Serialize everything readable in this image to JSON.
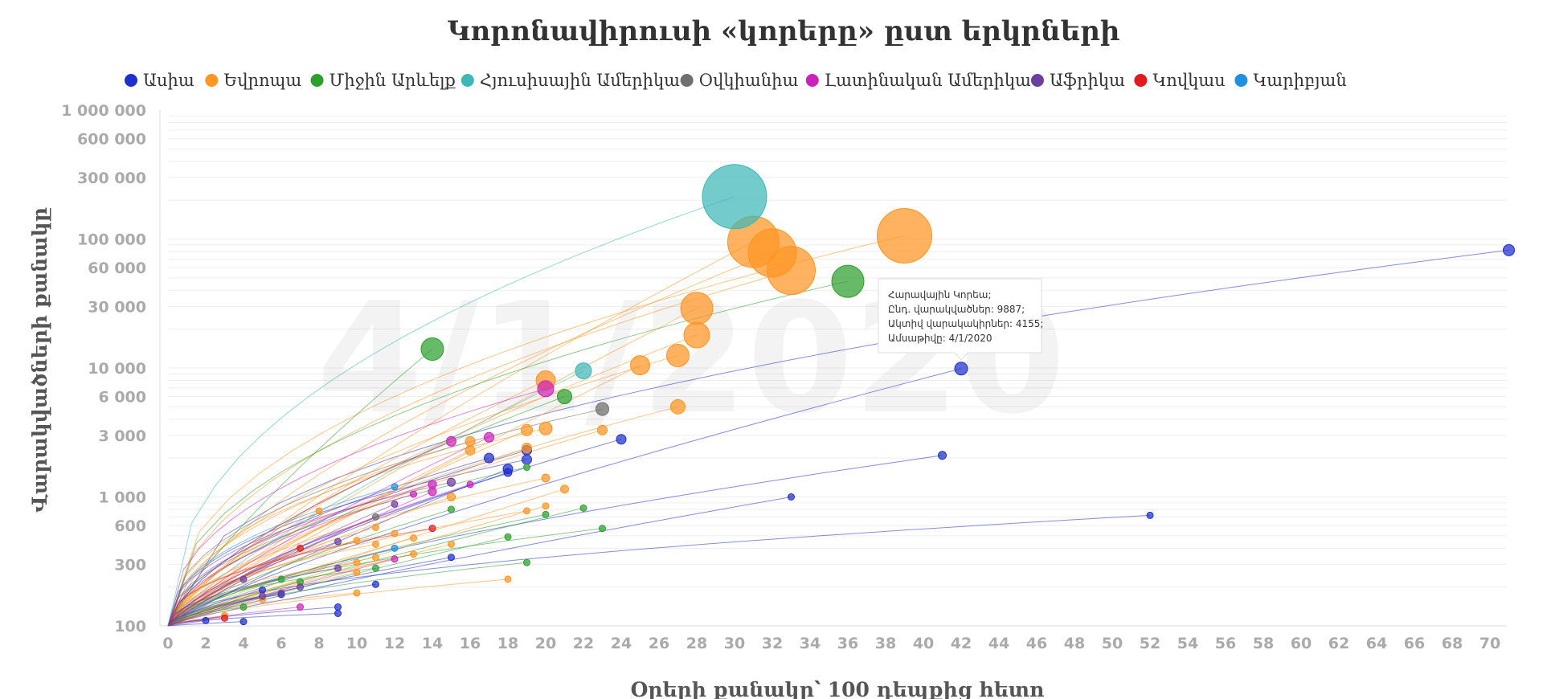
{
  "chart_data": {
    "type": "scatter",
    "title": "Կորոնավիրուսի «կորերը» ըստ երկրների",
    "xlabel": "Օրերի քանակը՝ 100 դեպքից հետո",
    "ylabel": "Վարակվածների քանակը",
    "watermark": "4/1/2020",
    "xlim": [
      0,
      71
    ],
    "ylim": [
      100,
      1000000
    ],
    "yscale": "log",
    "grid": true,
    "legend_position": "top",
    "x_ticks": [
      "0",
      "2",
      "4",
      "6",
      "8",
      "10",
      "12",
      "14",
      "16",
      "18",
      "20",
      "22",
      "24",
      "26",
      "28",
      "30",
      "32",
      "34",
      "36",
      "38",
      "40",
      "42",
      "44",
      "46",
      "48",
      "50",
      "52",
      "54",
      "56",
      "58",
      "60",
      "62",
      "64",
      "66",
      "68",
      "70"
    ],
    "y_ticks": [
      {
        "value": 100,
        "label": "100"
      },
      {
        "value": 300,
        "label": "300"
      },
      {
        "value": 600,
        "label": "600"
      },
      {
        "value": 1000,
        "label": "1 000"
      },
      {
        "value": 3000,
        "label": "3 000"
      },
      {
        "value": 6000,
        "label": "6 000"
      },
      {
        "value": 10000,
        "label": "10 000"
      },
      {
        "value": 30000,
        "label": "30 000"
      },
      {
        "value": 60000,
        "label": "60 000"
      },
      {
        "value": 100000,
        "label": "100 000"
      },
      {
        "value": 300000,
        "label": "300 000"
      },
      {
        "value": 600000,
        "label": "600 000"
      },
      {
        "value": 1000000,
        "label": "1 000 000"
      }
    ],
    "series": [
      {
        "name": "Ասիա",
        "color": "#1f2fcc",
        "points": [
          [
            71,
            82000,
            7
          ],
          [
            42,
            9887,
            8
          ],
          [
            41,
            2100,
            5
          ],
          [
            52,
            720,
            4
          ],
          [
            33,
            1000,
            4
          ],
          [
            24,
            2800,
            6
          ],
          [
            17,
            2000,
            6
          ],
          [
            18,
            1650,
            6
          ],
          [
            18,
            1550,
            5
          ],
          [
            19,
            2300,
            6
          ],
          [
            19,
            1950,
            6
          ],
          [
            11,
            210,
            4
          ],
          [
            9,
            140,
            4
          ],
          [
            9,
            125,
            4
          ],
          [
            4,
            108,
            4
          ],
          [
            5,
            190,
            4
          ],
          [
            6,
            175,
            4
          ],
          [
            2,
            110,
            4
          ],
          [
            15,
            340,
            4
          ]
        ]
      },
      {
        "name": "Եվրոպա",
        "color": "#ff9522",
        "points": [
          [
            39,
            106000,
            34
          ],
          [
            31,
            95000,
            32
          ],
          [
            32,
            78000,
            30
          ],
          [
            33,
            57000,
            30
          ],
          [
            28,
            29000,
            20
          ],
          [
            28,
            18000,
            16
          ],
          [
            27,
            12500,
            14
          ],
          [
            25,
            10500,
            12
          ],
          [
            20,
            8000,
            12
          ],
          [
            27,
            5000,
            9
          ],
          [
            20,
            3400,
            8
          ],
          [
            19,
            3300,
            7
          ],
          [
            23,
            3300,
            6
          ],
          [
            16,
            2700,
            6
          ],
          [
            16,
            2300,
            6
          ],
          [
            19,
            2400,
            6
          ],
          [
            20,
            1400,
            5
          ],
          [
            21,
            1150,
            5
          ],
          [
            15,
            1000,
            5
          ],
          [
            11,
            580,
            4
          ],
          [
            12,
            520,
            4
          ],
          [
            13,
            480,
            4
          ],
          [
            10,
            460,
            4
          ],
          [
            11,
            430,
            4
          ],
          [
            15,
            430,
            4
          ],
          [
            8,
            780,
            4
          ],
          [
            19,
            780,
            4
          ],
          [
            20,
            850,
            4
          ],
          [
            13,
            360,
            4
          ],
          [
            11,
            340,
            4
          ],
          [
            10,
            310,
            4
          ],
          [
            10,
            260,
            4
          ],
          [
            18,
            230,
            4
          ],
          [
            10,
            180,
            4
          ],
          [
            5,
            160,
            4
          ],
          [
            3,
            120,
            4
          ]
        ]
      },
      {
        "name": "Միջին Արևելք",
        "color": "#2ca02c",
        "points": [
          [
            36,
            47000,
            20
          ],
          [
            14,
            14000,
            14
          ],
          [
            21,
            6000,
            9
          ],
          [
            19,
            1700,
            4
          ],
          [
            22,
            820,
            4
          ],
          [
            20,
            730,
            4
          ],
          [
            23,
            570,
            4
          ],
          [
            18,
            490,
            4
          ],
          [
            15,
            800,
            4
          ],
          [
            19,
            310,
            4
          ],
          [
            11,
            280,
            4
          ],
          [
            7,
            220,
            4
          ],
          [
            6,
            230,
            4
          ],
          [
            4,
            140,
            4
          ]
        ]
      },
      {
        "name": "Հյուսիսային Ամերիկա",
        "color": "#3db7b7",
        "points": [
          [
            30,
            213000,
            40
          ],
          [
            22,
            9500,
            10
          ]
        ]
      },
      {
        "name": "Օվկիանիա",
        "color": "#6e6e6e",
        "points": [
          [
            23,
            4800,
            8
          ],
          [
            11,
            700,
            4
          ]
        ]
      },
      {
        "name": "Լատինական Ամերիկա",
        "color": "#cc22bb",
        "points": [
          [
            20,
            6900,
            10
          ],
          [
            17,
            2900,
            6
          ],
          [
            15,
            2700,
            6
          ],
          [
            14,
            1250,
            5
          ],
          [
            14,
            1100,
            5
          ],
          [
            16,
            1250,
            4
          ],
          [
            13,
            1050,
            4
          ],
          [
            12,
            330,
            4
          ],
          [
            7,
            140,
            4
          ]
        ]
      },
      {
        "name": "Աֆրիկա",
        "color": "#6a3fa0",
        "points": [
          [
            15,
            1300,
            5
          ],
          [
            12,
            880,
            4
          ],
          [
            9,
            450,
            4
          ],
          [
            9,
            280,
            4
          ],
          [
            7,
            200,
            4
          ],
          [
            6,
            180,
            4
          ],
          [
            5,
            170,
            4
          ],
          [
            4,
            230,
            4
          ]
        ]
      },
      {
        "name": "Կովկաս",
        "color": "#e31a1c",
        "points": [
          [
            14,
            570,
            4
          ],
          [
            7,
            400,
            4
          ],
          [
            3,
            115,
            4
          ]
        ]
      },
      {
        "name": "Կարիբյան",
        "color": "#1f8fe0",
        "points": [
          [
            12,
            1200,
            4
          ],
          [
            12,
            400,
            4
          ]
        ]
      }
    ],
    "tooltip": {
      "lines": [
        "Հարավային Կորեա;",
        "Ընդ. վարակվածներ: 9887;",
        "Ակտիվ վարակակիրներ: 4155;",
        "Ամսաթիվը: 4/1/2020"
      ]
    }
  }
}
